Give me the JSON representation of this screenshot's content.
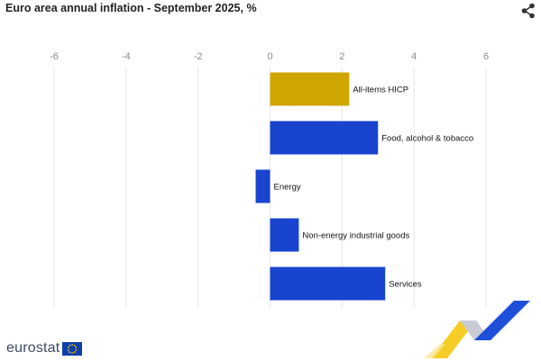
{
  "header": {
    "title": "Euro area annual inflation - September 2025, %"
  },
  "icons": {
    "share": "share-icon",
    "logo_flag": "eu-flag-icon"
  },
  "footer": {
    "logo_text": "eurostat"
  },
  "colors": {
    "highlight": "#cfa600",
    "bar": "#1844cf",
    "grid": "#e4e4e4",
    "deco_yellow": "#f5c400",
    "deco_blue": "#1d4fd8",
    "deco_gray": "#c9ccd4"
  },
  "chart_data": {
    "type": "bar",
    "orientation": "horizontal",
    "title": "Euro area annual inflation - September 2025, %",
    "categories": [
      "All-items HICP",
      "Food, alcohol & tobacco",
      "Energy",
      "Non-energy industrial goods",
      "Services"
    ],
    "values": [
      2.2,
      3.0,
      -0.4,
      0.8,
      3.2
    ],
    "highlight_index": 0,
    "xlim": [
      -6,
      6
    ],
    "xticks": [
      -6,
      -4,
      -2,
      0,
      2,
      4,
      6
    ],
    "xtick_position": "top",
    "grid": true,
    "legend": "none"
  }
}
